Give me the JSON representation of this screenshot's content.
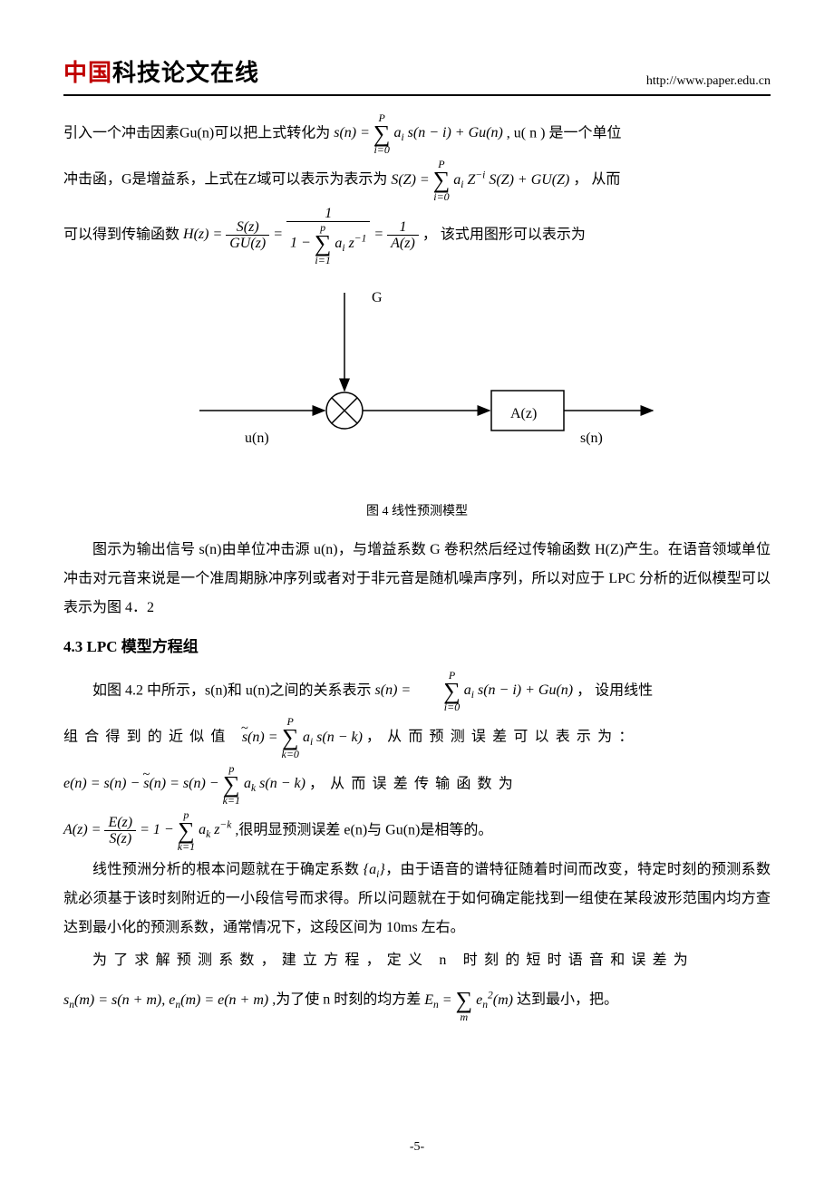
{
  "header": {
    "logo_red": "中国",
    "logo_black": "科技论文在线",
    "url": "http://www.paper.edu.cn"
  },
  "para1_a": "引入一个冲击因素Gu(n)可以把上式转化为 ",
  "eq1": {
    "lhs": "s(n) = ",
    "sum_top": "P",
    "sum_bot": "i=0",
    "term": "a<sub>i</sub> s(n − i) + Gu(n)"
  },
  "para1_b": " , u( n )  是一个单位",
  "para2_a": "冲击函，G是增益系，上式在Z域可以表示为表示为 ",
  "eq2": {
    "lhs": "S(Z) = ",
    "sum_top": "P",
    "sum_bot": "i=0",
    "term": "a<sub>i</sub> Z<sup>−i</sup> S(Z) + GU(Z)"
  },
  "para2_b": "， 从而",
  "para3_a": "可以得到传输函数 ",
  "eq3": {
    "h": "H(z) = ",
    "f1_num": "S(z)",
    "f1_den": "GU(z)",
    "eq": " = ",
    "f2_num": "1",
    "f2_den_pre": "1 − ",
    "f2_sum_top": "p",
    "f2_sum_bot": "i=1",
    "f2_den_post": "a<sub>i</sub> z<sup>−1</sup>",
    "f3_num": "1",
    "f3_den": "A(z)"
  },
  "para3_b": "， 该式用图形可以表示为",
  "diagram": {
    "G": "G",
    "un": "u(n)",
    "Az": "A(z)",
    "sn": "s(n)"
  },
  "fig_caption": "图 4  线性预测模型",
  "para4": "图示为输出信号 s(n)由单位冲击源 u(n)，与增益系数 G 卷积然后经过传输函数 H(Z)产生。在语音领域单位冲击对元音来说是一个准周期脉冲序列或者对于非元音是随机噪声序列，所以对应于 LPC 分析的近似模型可以表示为图 4．2",
  "section": "4.3 LPC 模型方程组",
  "para5_a": "如图 4.2 中所示，s(n)和 u(n)之间的关系表示 ",
  "eq5": {
    "lhs": "s(n) = ",
    "sum_top": "P",
    "sum_bot": "i=0",
    "term": "a<sub>i</sub> s(n − i) + Gu(n)"
  },
  "para5_b": " ， 设用线性",
  "para6_a": "组合得到的近似值 ",
  "eq6": {
    "lhs_tilde": "s",
    "lhs_rest": "(n) = ",
    "sum_top": "P",
    "sum_bot": "k=0",
    "term": "a<sub>i</sub> s(n − k)"
  },
  "para6_b": " ，从而预测误差可以表示为：",
  "eq7": {
    "text_a": "e(n) = s(n) − ",
    "tilde": "s",
    "text_b": "(n) = s(n) − ",
    "sum_top": "p",
    "sum_bot": "k=1",
    "term": "a<sub>k</sub> s(n − k)"
  },
  "para7_b": " ，从而误差传输函数为",
  "eq8": {
    "A": "A(z) = ",
    "f_num": "E(z)",
    "f_den": "S(z)",
    "mid": " = 1 − ",
    "sum_top": "p",
    "sum_bot": "k=1",
    "term": "a<sub>k</sub> z<sup>−k</sup>"
  },
  "para8_b": " ,很明显预测误差 e(n)与 Gu(n)是相等的。",
  "para9_a": "线性预洲分析的根本问题就在于确定系数 ",
  "eq9_set": "{a<sub>i</sub>}",
  "para9_b": "，由于语音的谱特征随着时间而改变，特定时刻的预测系数就必须基于该时刻附近的一小段信号而求得。所以问题就在于如何确定能找到一组使在某段波形范围内均方查达到最小化的预测系数，通常情况下，这段区间为 10ms 左右。",
  "para10_a": "为了求解预测系数，建立方程，定义 n 时刻的短时语音和误差为",
  "eq10_a": "s<sub>n</sub>(m) = s(n + m), e<sub>n</sub>(m) = e(n + m)",
  "para10_b": " ,为了使 n 时刻的均方差 ",
  "eq10_b": {
    "lhs": "E<sub>n</sub> = ",
    "sum_bot": "m",
    "term": "e<sub>n</sub><sup>2</sup>(m)"
  },
  "para10_c": " 达到最小，把。",
  "page_number": "-5-"
}
